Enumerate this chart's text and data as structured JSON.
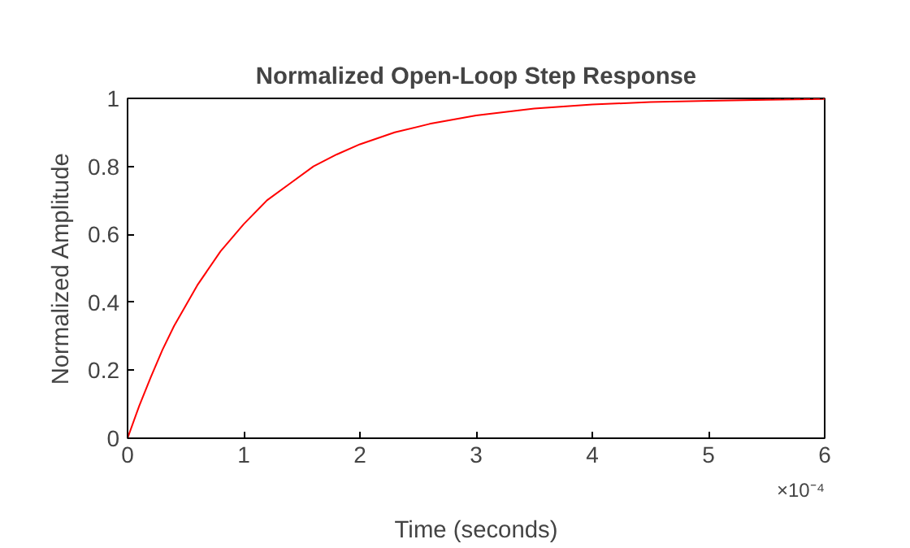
{
  "chart_data": {
    "type": "line",
    "title": "Normalized Open-Loop Step Response",
    "xlabel": "Time (seconds)",
    "ylabel": "Normalized Amplitude",
    "annotations": [
      "×10⁻⁴"
    ],
    "x": [
      0,
      0.1,
      0.2,
      0.3,
      0.4,
      0.5,
      0.6,
      0.8,
      1,
      1.2,
      1.4,
      1.6,
      1.8,
      2,
      2.3,
      2.6,
      3,
      3.5,
      4,
      4.5,
      5,
      5.5,
      6
    ],
    "series": [
      {
        "color": "#ff0000",
        "values": [
          0,
          0.095,
          0.18,
          0.26,
          0.33,
          0.39,
          0.45,
          0.55,
          0.63,
          0.7,
          0.75,
          0.8,
          0.835,
          0.865,
          0.9,
          0.925,
          0.95,
          0.97,
          0.982,
          0.989,
          0.993,
          0.996,
          0.998
        ]
      }
    ],
    "xlim": [
      0,
      6
    ],
    "ylim": [
      0,
      1
    ],
    "xticks": [
      0,
      1,
      2,
      3,
      4,
      5,
      6
    ],
    "yticks": [
      0,
      0.2,
      0.4,
      0.6,
      0.8,
      1
    ],
    "ref_lines": [
      {
        "axis": "y",
        "value": 1,
        "color": "#000000",
        "line_style": "dotted"
      }
    ],
    "grid": false,
    "marker": "none",
    "line_style": "solid"
  }
}
